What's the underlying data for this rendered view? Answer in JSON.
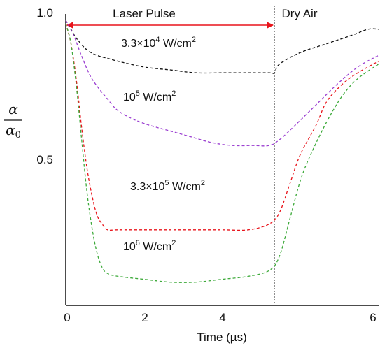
{
  "chart_data": {
    "type": "line",
    "xlabel": "Time (µs)",
    "ylabel": {
      "numerator": "α",
      "denominator": "α",
      "denominator_subscript": "0"
    },
    "xlim": [
      0,
      6
    ],
    "ylim": [
      0,
      1.0
    ],
    "x_ticks": [
      "0",
      "2",
      "4",
      "6"
    ],
    "y_ticks": [
      "0.5",
      "1.0"
    ],
    "y_tick_values": [
      0.5,
      1.0
    ],
    "x_tick_values": [
      0,
      2,
      4,
      6
    ],
    "grid": false,
    "line_style": "dashed",
    "regions": [
      {
        "label": "Laser Pulse",
        "from": 0,
        "to": 4,
        "arrow_color": "#e8141b"
      },
      {
        "label": "Dry Air",
        "from": 4,
        "to": 6
      }
    ],
    "divider_x": 4,
    "series": [
      {
        "label": {
          "base": "3.3×10",
          "exp": "4",
          "unit": " W/cm",
          "unit_exp": "2"
        },
        "color": "#111111",
        "points": [
          [
            0,
            0.98
          ],
          [
            0.1,
            0.95
          ],
          [
            0.2,
            0.92
          ],
          [
            0.4,
            0.88
          ],
          [
            0.6,
            0.86
          ],
          [
            0.8,
            0.85
          ],
          [
            1.0,
            0.84
          ],
          [
            1.5,
            0.82
          ],
          [
            2.0,
            0.81
          ],
          [
            2.5,
            0.8
          ],
          [
            3.0,
            0.8
          ],
          [
            3.5,
            0.8
          ],
          [
            3.9,
            0.8
          ],
          [
            4.0,
            0.8
          ],
          [
            4.1,
            0.83
          ],
          [
            4.5,
            0.87
          ],
          [
            5.0,
            0.9
          ],
          [
            5.5,
            0.93
          ],
          [
            5.8,
            0.95
          ],
          [
            6.0,
            0.95
          ]
        ]
      },
      {
        "label": {
          "base": "10",
          "exp": "5",
          "unit": " W/cm",
          "unit_exp": "2"
        },
        "color": "#9b3fd1",
        "points": [
          [
            0,
            0.98
          ],
          [
            0.15,
            0.93
          ],
          [
            0.3,
            0.86
          ],
          [
            0.5,
            0.78
          ],
          [
            0.8,
            0.71
          ],
          [
            1.0,
            0.67
          ],
          [
            1.3,
            0.64
          ],
          [
            1.6,
            0.62
          ],
          [
            2.0,
            0.6
          ],
          [
            2.4,
            0.58
          ],
          [
            2.8,
            0.56
          ],
          [
            3.2,
            0.55
          ],
          [
            3.6,
            0.55
          ],
          [
            3.9,
            0.55
          ],
          [
            4.1,
            0.57
          ],
          [
            4.4,
            0.62
          ],
          [
            4.8,
            0.69
          ],
          [
            5.2,
            0.76
          ],
          [
            5.6,
            0.82
          ],
          [
            6.0,
            0.86
          ]
        ]
      },
      {
        "label": {
          "base": "3.3×10",
          "exp": "5",
          "unit": " W/cm",
          "unit_exp": "2"
        },
        "color": "#e8141b",
        "points": [
          [
            0,
            0.97
          ],
          [
            0.1,
            0.9
          ],
          [
            0.2,
            0.78
          ],
          [
            0.3,
            0.62
          ],
          [
            0.4,
            0.48
          ],
          [
            0.5,
            0.38
          ],
          [
            0.6,
            0.31
          ],
          [
            0.7,
            0.28
          ],
          [
            0.8,
            0.26
          ],
          [
            1.0,
            0.26
          ],
          [
            1.5,
            0.26
          ],
          [
            2.0,
            0.26
          ],
          [
            2.5,
            0.26
          ],
          [
            3.0,
            0.26
          ],
          [
            3.5,
            0.26
          ],
          [
            3.9,
            0.28
          ],
          [
            4.1,
            0.32
          ],
          [
            4.3,
            0.42
          ],
          [
            4.5,
            0.52
          ],
          [
            4.8,
            0.62
          ],
          [
            5.0,
            0.7
          ],
          [
            5.3,
            0.76
          ],
          [
            5.6,
            0.8
          ],
          [
            6.0,
            0.84
          ]
        ]
      },
      {
        "label": {
          "base": "10",
          "exp": "6",
          "unit": " W/cm",
          "unit_exp": "2"
        },
        "color": "#3daa3a",
        "points": [
          [
            0,
            0.97
          ],
          [
            0.1,
            0.9
          ],
          [
            0.2,
            0.76
          ],
          [
            0.3,
            0.58
          ],
          [
            0.4,
            0.4
          ],
          [
            0.5,
            0.27
          ],
          [
            0.6,
            0.18
          ],
          [
            0.7,
            0.13
          ],
          [
            0.8,
            0.11
          ],
          [
            1.0,
            0.1
          ],
          [
            1.5,
            0.09
          ],
          [
            2.0,
            0.08
          ],
          [
            2.5,
            0.08
          ],
          [
            3.0,
            0.09
          ],
          [
            3.5,
            0.1
          ],
          [
            3.9,
            0.12
          ],
          [
            4.1,
            0.17
          ],
          [
            4.3,
            0.3
          ],
          [
            4.5,
            0.43
          ],
          [
            4.7,
            0.52
          ],
          [
            5.0,
            0.63
          ],
          [
            5.3,
            0.72
          ],
          [
            5.6,
            0.78
          ],
          [
            6.0,
            0.83
          ]
        ]
      }
    ]
  }
}
